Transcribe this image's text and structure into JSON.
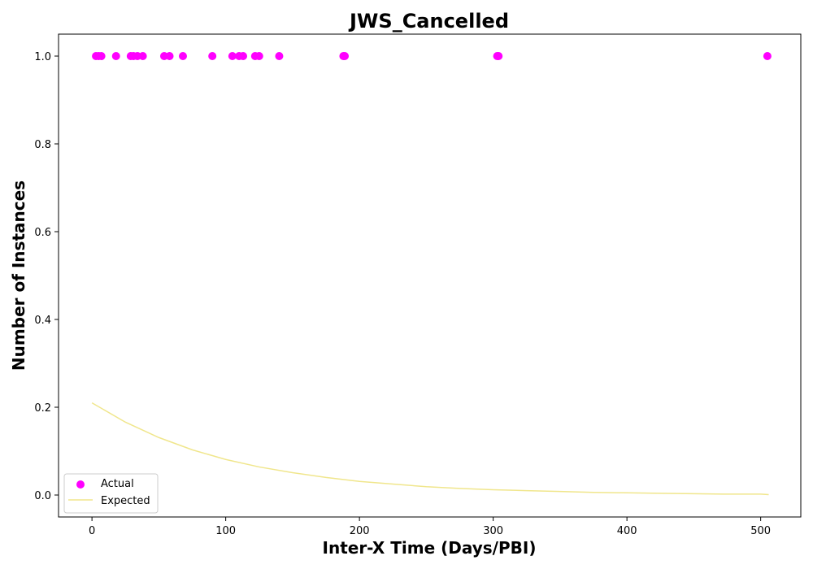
{
  "chart_data": {
    "type": "scatter",
    "title": "JWS_Cancelled",
    "xlabel": "Inter-X Time (Days/PBI)",
    "ylabel": "Number of Instances",
    "xlim": [
      -25,
      530
    ],
    "ylim": [
      -0.05,
      1.05
    ],
    "x_ticks": [
      0,
      100,
      200,
      300,
      400,
      500
    ],
    "y_ticks": [
      0.0,
      0.2,
      0.4,
      0.6,
      0.8,
      1.0
    ],
    "grid": false,
    "legend_position": "lower-left",
    "series": [
      {
        "name": "Actual",
        "kind": "scatter",
        "color": "#ff00ff",
        "x": [
          3,
          5,
          7,
          18,
          29,
          31,
          34,
          38,
          54,
          58,
          68,
          90,
          105,
          110,
          113,
          122,
          125,
          140,
          188,
          189,
          303,
          304,
          505
        ],
        "y": [
          1,
          1,
          1,
          1,
          1,
          1,
          1,
          1,
          1,
          1,
          1,
          1,
          1,
          1,
          1,
          1,
          1,
          1,
          1,
          1,
          1,
          1,
          1
        ]
      },
      {
        "name": "Expected",
        "kind": "line",
        "color": "#f0e68c",
        "x": [
          0,
          25,
          50,
          75,
          100,
          125,
          150,
          175,
          200,
          225,
          250,
          275,
          300,
          325,
          350,
          375,
          400,
          425,
          450,
          475,
          500,
          506
        ],
        "y": [
          0.21,
          0.166,
          0.131,
          0.103,
          0.081,
          0.064,
          0.051,
          0.04,
          0.031,
          0.025,
          0.019,
          0.015,
          0.012,
          0.01,
          0.008,
          0.006,
          0.005,
          0.004,
          0.003,
          0.002,
          0.002,
          0.001
        ]
      }
    ]
  }
}
